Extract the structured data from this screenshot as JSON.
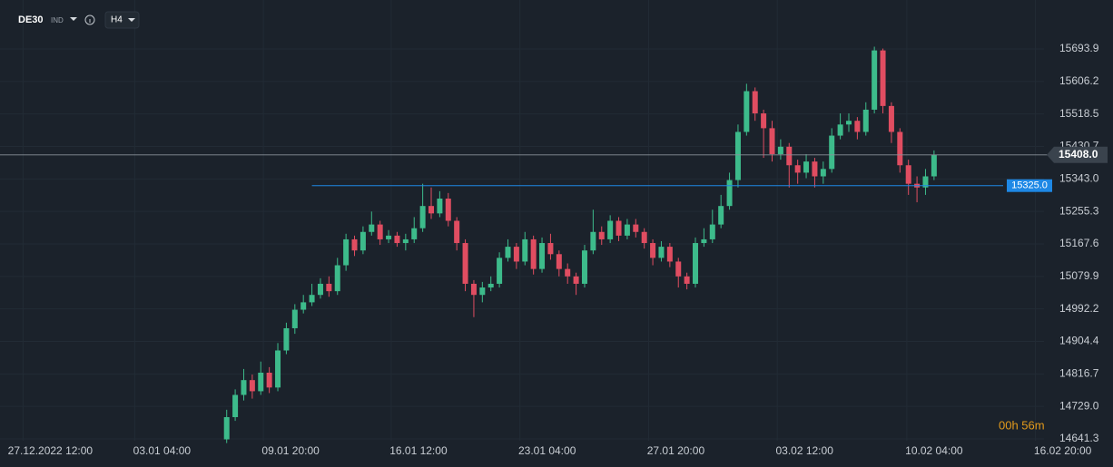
{
  "header": {
    "symbol": "DE30",
    "market": "IND",
    "timeframe": "H4"
  },
  "chart_data": {
    "type": "candlestick",
    "up_color": "#3dbb8b",
    "down_color": "#e04d61",
    "grid": true,
    "ylim": [
      14636.4,
      15826.1
    ],
    "yticks": [
      14641.3,
      {
        "value": 14729.0,
        "label": "14729.0"
      },
      14816.7,
      14904.4,
      14992.2,
      15079.9,
      15167.6,
      15255.3,
      {
        "value": 15343.0,
        "label": "15343.0"
      },
      15430.7,
      15518.5,
      15606.2,
      15693.9
    ],
    "xlim": [
      -26.6,
      104
    ],
    "xticks": [
      {
        "value": -20.7,
        "label": "27.12.2022  12:00"
      },
      {
        "value": -7.6,
        "label": "03.01  04:00"
      },
      {
        "value": 7.5,
        "label": "09.01  20:00"
      },
      {
        "value": 22.5,
        "label": "16.01  12:00"
      },
      {
        "value": 37.6,
        "label": "23.01  04:00"
      },
      {
        "value": 52.7,
        "label": "27.01  20:00"
      },
      {
        "value": 67.8,
        "label": "03.02  12:00"
      },
      {
        "value": 83,
        "label": "10.02  04:00"
      },
      {
        "value": 98.1,
        "label": "16.02  20:00"
      }
    ],
    "open": [
      14640,
      14700,
      14760,
      14800,
      14770,
      14820,
      14780,
      14880,
      14940,
      14990,
      15010,
      15030,
      15060,
      15040,
      15110,
      15180,
      15150,
      15200,
      15220,
      15180,
      15190,
      15170,
      15180,
      15210,
      15270,
      15250,
      15290,
      15230,
      15170,
      15060,
      15030,
      15050,
      15060,
      15130,
      15160,
      15120,
      15180,
      15100,
      15170,
      15140,
      15100,
      15080,
      15060,
      15150,
      15200,
      15180,
      15230,
      15190,
      15220,
      15200,
      15170,
      15130,
      15160,
      15120,
      15080,
      15060,
      15170,
      15180,
      15220,
      15270,
      15340,
      15470,
      15580,
      15520,
      15480,
      15410,
      15430,
      15380,
      15360,
      15390,
      15350,
      15370,
      15460,
      15490,
      15500,
      15470,
      15530,
      15690,
      15540,
      15470,
      15380,
      15330,
      15320,
      15350
    ],
    "high": [
      14720,
      14775,
      14830,
      14815,
      14850,
      14835,
      14900,
      14955,
      15005,
      15030,
      15060,
      15075,
      15080,
      15130,
      15195,
      15190,
      15215,
      15255,
      15230,
      15205,
      15200,
      15195,
      15240,
      15330,
      15320,
      15310,
      15305,
      15240,
      15180,
      15070,
      15065,
      15080,
      15145,
      15180,
      15170,
      15200,
      15190,
      15185,
      15195,
      15150,
      15115,
      15090,
      15165,
      15260,
      15215,
      15245,
      15240,
      15235,
      15235,
      15210,
      15180,
      15175,
      15170,
      15130,
      15090,
      15185,
      15210,
      15260,
      15300,
      15360,
      15490,
      15600,
      15590,
      15530,
      15500,
      15450,
      15440,
      15395,
      15410,
      15400,
      15390,
      15480,
      15520,
      15520,
      15510,
      15550,
      15700,
      15695,
      15550,
      15480,
      15395,
      15350,
      15370,
      15420
    ],
    "low": [
      14630,
      14690,
      14745,
      14750,
      14760,
      14765,
      14770,
      14870,
      14925,
      14980,
      15000,
      15020,
      15025,
      15030,
      15095,
      15135,
      15140,
      15190,
      15165,
      15170,
      15160,
      15150,
      15170,
      15200,
      15235,
      15240,
      15215,
      15150,
      15040,
      14970,
      15010,
      15040,
      15050,
      15120,
      15100,
      15110,
      15085,
      15090,
      15125,
      15080,
      15060,
      15030,
      15050,
      15140,
      15165,
      15170,
      15175,
      15180,
      15185,
      15155,
      15110,
      15120,
      15105,
      15050,
      15045,
      15050,
      15160,
      15170,
      15210,
      15260,
      15320,
      15460,
      15500,
      15400,
      15390,
      15395,
      15320,
      15330,
      15345,
      15320,
      15330,
      15360,
      15450,
      15470,
      15450,
      15460,
      15520,
      15520,
      15440,
      15360,
      15300,
      15280,
      15300,
      15340
    ],
    "close": [
      14700,
      14760,
      14800,
      14770,
      14820,
      14780,
      14880,
      14940,
      14990,
      15010,
      15030,
      15060,
      15040,
      15110,
      15180,
      15150,
      15200,
      15220,
      15180,
      15190,
      15170,
      15180,
      15210,
      15270,
      15250,
      15290,
      15230,
      15170,
      15060,
      15030,
      15050,
      15060,
      15130,
      15160,
      15120,
      15180,
      15100,
      15170,
      15140,
      15100,
      15080,
      15060,
      15150,
      15200,
      15180,
      15230,
      15190,
      15220,
      15200,
      15170,
      15130,
      15160,
      15120,
      15080,
      15060,
      15170,
      15180,
      15220,
      15270,
      15340,
      15470,
      15580,
      15520,
      15480,
      15410,
      15430,
      15380,
      15360,
      15390,
      15350,
      15370,
      15460,
      15490,
      15500,
      15470,
      15530,
      15690,
      15540,
      15470,
      15380,
      15330,
      15320,
      15350,
      15408
    ],
    "last_price": {
      "value": 15408,
      "label": "15408.0",
      "color": "#8a9199"
    },
    "level": {
      "value": 15325,
      "label": "15325.0",
      "color": "#1e88e5"
    },
    "countdown": "00h 56m"
  }
}
